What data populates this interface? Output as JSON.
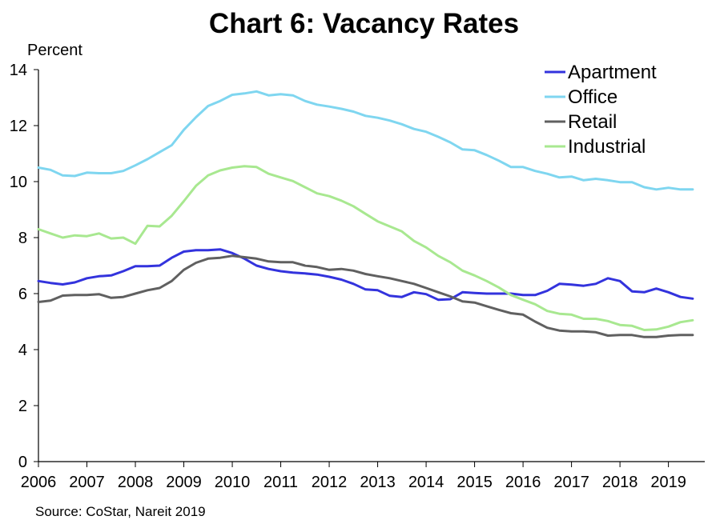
{
  "chart_data": {
    "type": "line",
    "title": "Chart 6: Vacancy Rates",
    "ylabel": "Percent",
    "xlabel": "",
    "source": "Source: CoStar, Nareit 2019",
    "ylim": [
      0,
      14
    ],
    "xlim": [
      2006,
      2019.75
    ],
    "yticks": [
      0,
      2,
      4,
      6,
      8,
      10,
      12,
      14
    ],
    "xticks": [
      2006,
      2007,
      2008,
      2009,
      2010,
      2011,
      2012,
      2013,
      2014,
      2015,
      2016,
      2017,
      2018,
      2019
    ],
    "legend_position": "top-right",
    "grid": false,
    "x_start": 2006,
    "x_step": 0.25,
    "series": [
      {
        "name": "Apartment",
        "color": "#3333dd",
        "values": [
          6.45,
          6.38,
          6.33,
          6.4,
          6.55,
          6.62,
          6.65,
          6.8,
          6.98,
          6.98,
          7.0,
          7.28,
          7.5,
          7.55,
          7.55,
          7.58,
          7.45,
          7.25,
          7.0,
          6.88,
          6.8,
          6.75,
          6.72,
          6.68,
          6.6,
          6.5,
          6.35,
          6.15,
          6.12,
          5.92,
          5.88,
          6.05,
          5.98,
          5.78,
          5.8,
          6.05,
          6.02,
          6.0,
          6.0,
          6.0,
          5.95,
          5.95,
          6.1,
          6.35,
          6.32,
          6.28,
          6.35,
          6.55,
          6.45,
          6.08,
          6.05,
          6.18,
          6.05,
          5.88,
          5.82
        ]
      },
      {
        "name": "Office",
        "color": "#7fd6f0",
        "values": [
          10.5,
          10.42,
          10.22,
          10.2,
          10.32,
          10.3,
          10.3,
          10.38,
          10.58,
          10.8,
          11.05,
          11.3,
          11.85,
          12.3,
          12.7,
          12.88,
          13.1,
          13.15,
          13.22,
          13.08,
          13.12,
          13.08,
          12.88,
          12.75,
          12.68,
          12.6,
          12.5,
          12.35,
          12.28,
          12.18,
          12.05,
          11.88,
          11.78,
          11.6,
          11.4,
          11.15,
          11.12,
          10.95,
          10.75,
          10.52,
          10.52,
          10.38,
          10.28,
          10.15,
          10.18,
          10.05,
          10.1,
          10.05,
          9.98,
          9.98,
          9.8,
          9.72,
          9.78,
          9.72,
          9.72
        ]
      },
      {
        "name": "Retail",
        "color": "#606060",
        "values": [
          5.7,
          5.75,
          5.93,
          5.95,
          5.95,
          5.98,
          5.85,
          5.88,
          6.0,
          6.12,
          6.2,
          6.45,
          6.85,
          7.1,
          7.25,
          7.28,
          7.35,
          7.3,
          7.25,
          7.15,
          7.12,
          7.12,
          7.0,
          6.95,
          6.85,
          6.88,
          6.82,
          6.7,
          6.62,
          6.55,
          6.45,
          6.35,
          6.2,
          6.05,
          5.9,
          5.72,
          5.68,
          5.55,
          5.42,
          5.3,
          5.25,
          5.0,
          4.78,
          4.68,
          4.65,
          4.65,
          4.62,
          4.5,
          4.52,
          4.52,
          4.45,
          4.45,
          4.5,
          4.52,
          4.52
        ]
      },
      {
        "name": "Industrial",
        "color": "#a8e890",
        "values": [
          8.3,
          8.15,
          8.0,
          8.08,
          8.05,
          8.15,
          7.97,
          8.0,
          7.78,
          8.42,
          8.4,
          8.78,
          9.3,
          9.85,
          10.22,
          10.4,
          10.5,
          10.55,
          10.52,
          10.28,
          10.15,
          10.02,
          9.8,
          9.58,
          9.48,
          9.32,
          9.12,
          8.85,
          8.58,
          8.4,
          8.22,
          7.88,
          7.65,
          7.35,
          7.12,
          6.82,
          6.65,
          6.45,
          6.22,
          5.95,
          5.78,
          5.62,
          5.38,
          5.28,
          5.25,
          5.1,
          5.1,
          5.02,
          4.88,
          4.85,
          4.7,
          4.72,
          4.82,
          4.98,
          5.05
        ]
      }
    ]
  }
}
